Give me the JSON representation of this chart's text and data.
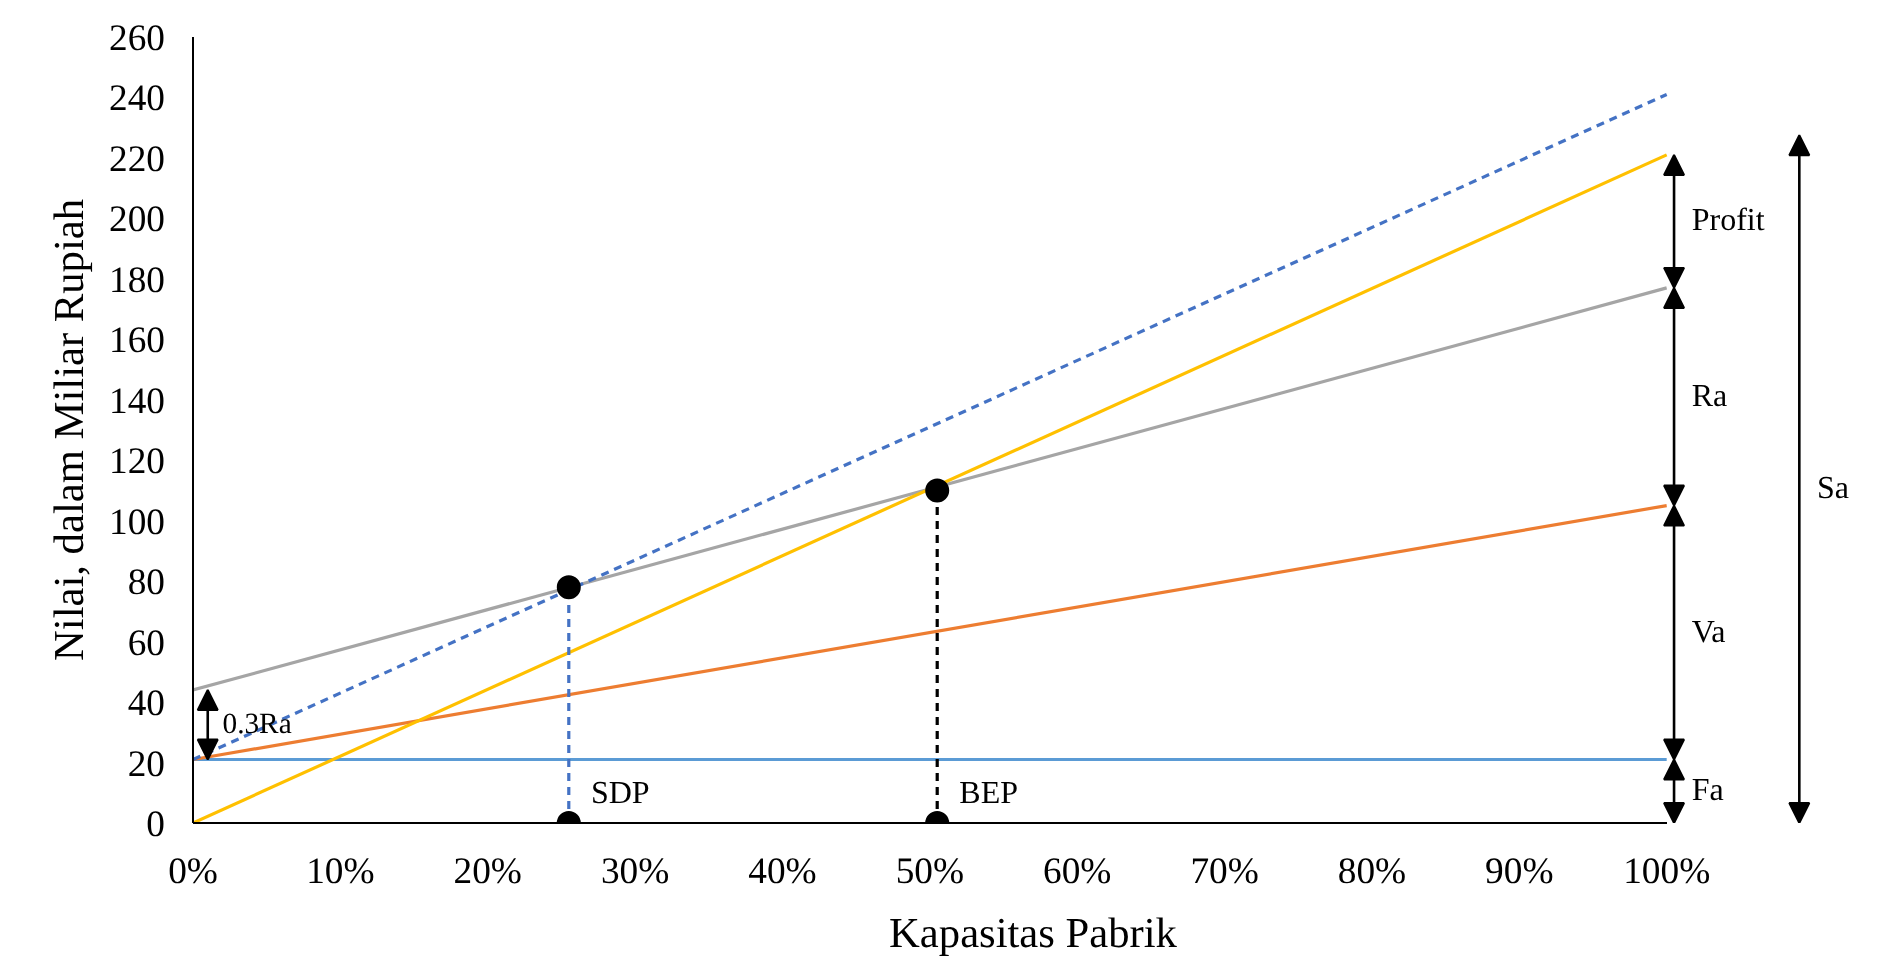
{
  "chart_data": {
    "type": "line",
    "xlabel": "Kapasitas Pabrik",
    "ylabel": "Nilai, dalam Miliar Rupiah",
    "xlim": [
      0,
      100
    ],
    "ylim": [
      0,
      260
    ],
    "xticks": [
      {
        "value": 0,
        "label": "0%"
      },
      {
        "value": 10,
        "label": "10%"
      },
      {
        "value": 20,
        "label": "20%"
      },
      {
        "value": 30,
        "label": "30%"
      },
      {
        "value": 40,
        "label": "40%"
      },
      {
        "value": 50,
        "label": "50%"
      },
      {
        "value": 60,
        "label": "60%"
      },
      {
        "value": 70,
        "label": "70%"
      },
      {
        "value": 80,
        "label": "80%"
      },
      {
        "value": 90,
        "label": "90%"
      },
      {
        "value": 100,
        "label": "100%"
      }
    ],
    "yticks": [
      0,
      20,
      40,
      60,
      80,
      100,
      120,
      140,
      160,
      180,
      200,
      220,
      240,
      260
    ],
    "grid": false,
    "series": [
      {
        "color": "#5b9bd5",
        "x": [
          0,
          100
        ],
        "values": [
          21,
          21
        ]
      },
      {
        "color": "#ed7d31",
        "x": [
          0,
          100
        ],
        "values": [
          21,
          105
        ]
      },
      {
        "color": "#a5a5a5",
        "x": [
          0,
          100
        ],
        "values": [
          44,
          177
        ]
      },
      {
        "color": "#ffc000",
        "x": [
          0,
          100
        ],
        "values": [
          0,
          221
        ]
      },
      {
        "color": "#4472c4",
        "line_style": "dashed",
        "x": [
          0,
          100
        ],
        "values": [
          21,
          241
        ]
      },
      {
        "color": "#4472c4",
        "line_style": "dashed",
        "x": [
          25.5,
          25.5
        ],
        "values": [
          0,
          78
        ]
      },
      {
        "color": "#000000",
        "line_style": "dashed",
        "x": [
          50.5,
          50.5
        ],
        "values": [
          0,
          110
        ]
      },
      {
        "type": "scatter",
        "color": "#000000",
        "marker": "circle",
        "x": [
          25.5,
          25.5,
          50.5,
          50.5
        ],
        "values": [
          78,
          0,
          110,
          0
        ]
      }
    ],
    "annotations": [
      "0.3Ra",
      "Fa",
      "Va",
      "Ra",
      "Profit",
      "Sa",
      "SDP",
      "BEP"
    ]
  }
}
